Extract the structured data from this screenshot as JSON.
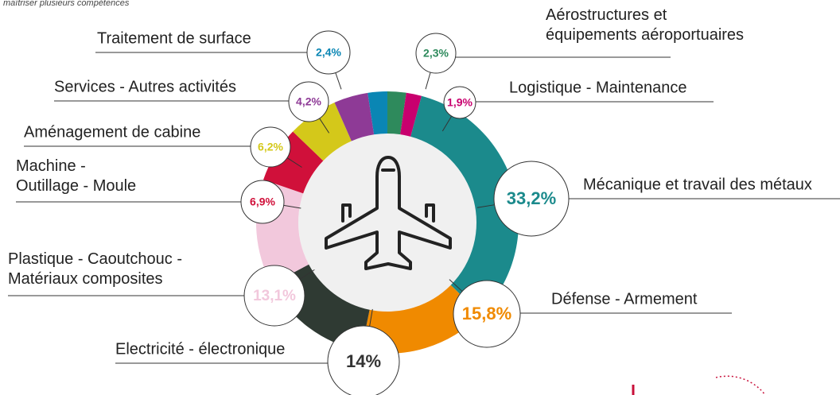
{
  "chart_data": {
    "type": "donut",
    "subtitle": "maîtriser plusieurs compétences",
    "categories": [
      "Aérostructures et\néquipements aéroportuaires",
      "Logistique - Maintenance",
      "Mécanique et travail des métaux",
      "Défense - Armement",
      "Electricité - électronique",
      "Plastique - Caoutchouc -\nMatériaux composites",
      "Machine -\nOutillage - Moule",
      "Aménagement de cabine",
      "Services - Autres activités",
      "Traitement de surface"
    ],
    "values": [
      2.3,
      1.9,
      33.2,
      15.8,
      14,
      13.1,
      6.9,
      6.2,
      4.2,
      2.4
    ],
    "value_labels": [
      "2,3%",
      "1,9%",
      "33,2%",
      "15,8%",
      "14%",
      "13,1%",
      "6,9%",
      "6,2%",
      "4,2%",
      "2,4%"
    ],
    "colors": [
      "#2e8a5c",
      "#c8006e",
      "#1b8a8c",
      "#f08a00",
      "#2f3a33",
      "#f2c8dc",
      "#d0103a",
      "#d4c81a",
      "#8e3a96",
      "#0a86b4"
    ]
  }
}
